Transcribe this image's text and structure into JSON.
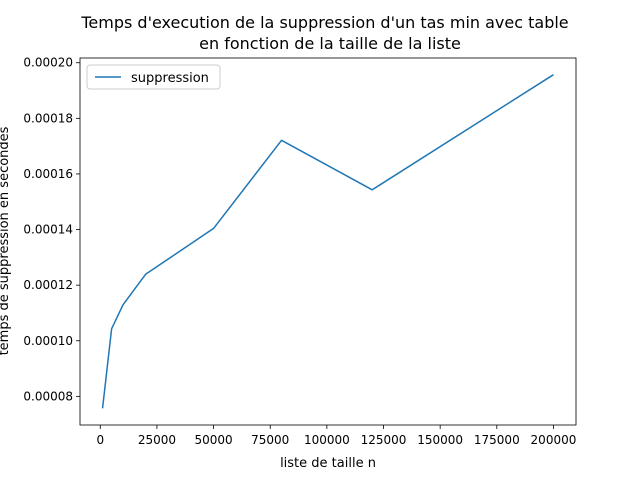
{
  "chart_data": {
    "type": "line",
    "title": [
      "Temps d'execution de la suppression d'un tas min avec table",
      "en fonction de la taille de la liste"
    ],
    "x_label": "liste de taille n",
    "y_label": "temps de suppression en secondes",
    "x": [
      1000,
      5000,
      10000,
      20000,
      50000,
      80000,
      120000,
      200000
    ],
    "series": [
      {
        "name": "suppression",
        "color": "#1f77b4",
        "values": [
          7.57e-05,
          0.0001043,
          0.0001129,
          0.0001239,
          0.0001404,
          0.0001721,
          0.0001543,
          0.0001957
        ]
      }
    ],
    "xlim": [
      -8950,
      209950
    ],
    "ylim": [
      6.97e-05,
      0.0002017
    ],
    "xticks": [
      0,
      25000,
      50000,
      75000,
      100000,
      125000,
      150000,
      175000,
      200000
    ],
    "yticks": [
      {
        "value": 8e-05,
        "label": "0.00008"
      },
      {
        "value": 0.0001,
        "label": "0.00010"
      },
      {
        "value": 0.00012,
        "label": "0.00012"
      },
      {
        "value": 0.00014,
        "label": "0.00014"
      },
      {
        "value": 0.00016,
        "label": "0.00016"
      },
      {
        "value": 0.00018,
        "label": "0.00018"
      },
      {
        "value": 0.0002,
        "label": "0.00020"
      }
    ],
    "legend": "upper left"
  }
}
